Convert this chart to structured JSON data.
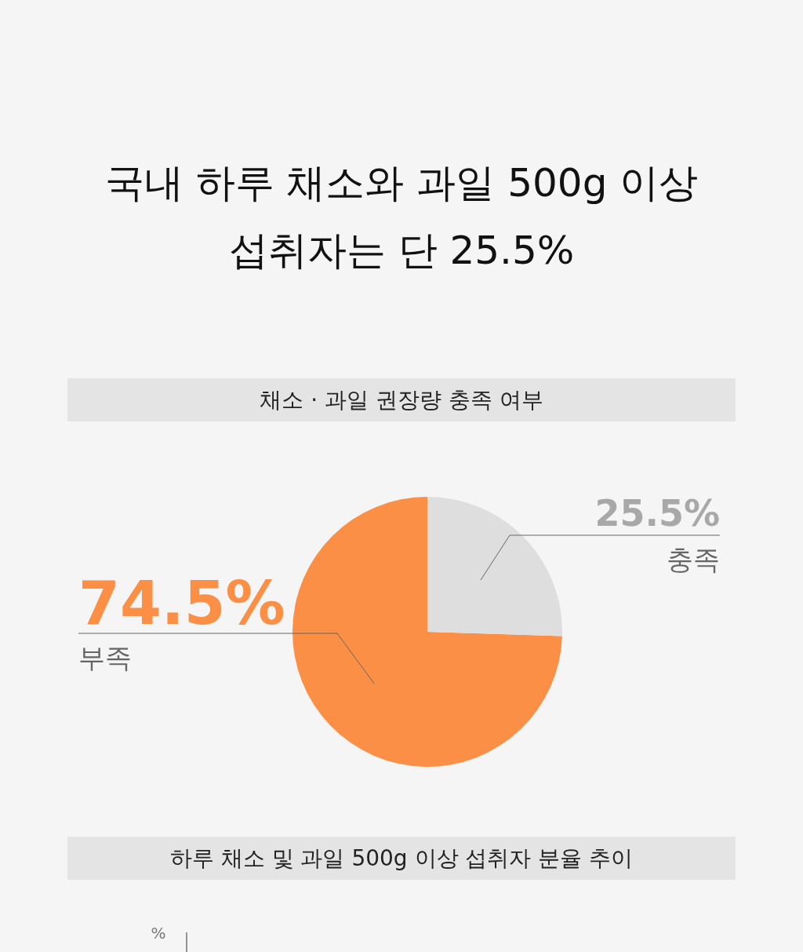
{
  "chart_data": {
    "type": "pie",
    "title": "국내 하루 채소와 과일 500g 이상 섭취자는 단 25.5%",
    "subtitle": "채소 · 과일 권장량 충족 여부",
    "categories": [
      "부족",
      "충족"
    ],
    "values": [
      74.5,
      25.5
    ],
    "colors": [
      "#fb8f45",
      "#dedede"
    ],
    "value_labels": [
      "74.5%",
      "25.5%"
    ],
    "annotations": [
      "하루 채소 및 과일 500g 이상 섭취자 분율 추이",
      "%"
    ]
  }
}
